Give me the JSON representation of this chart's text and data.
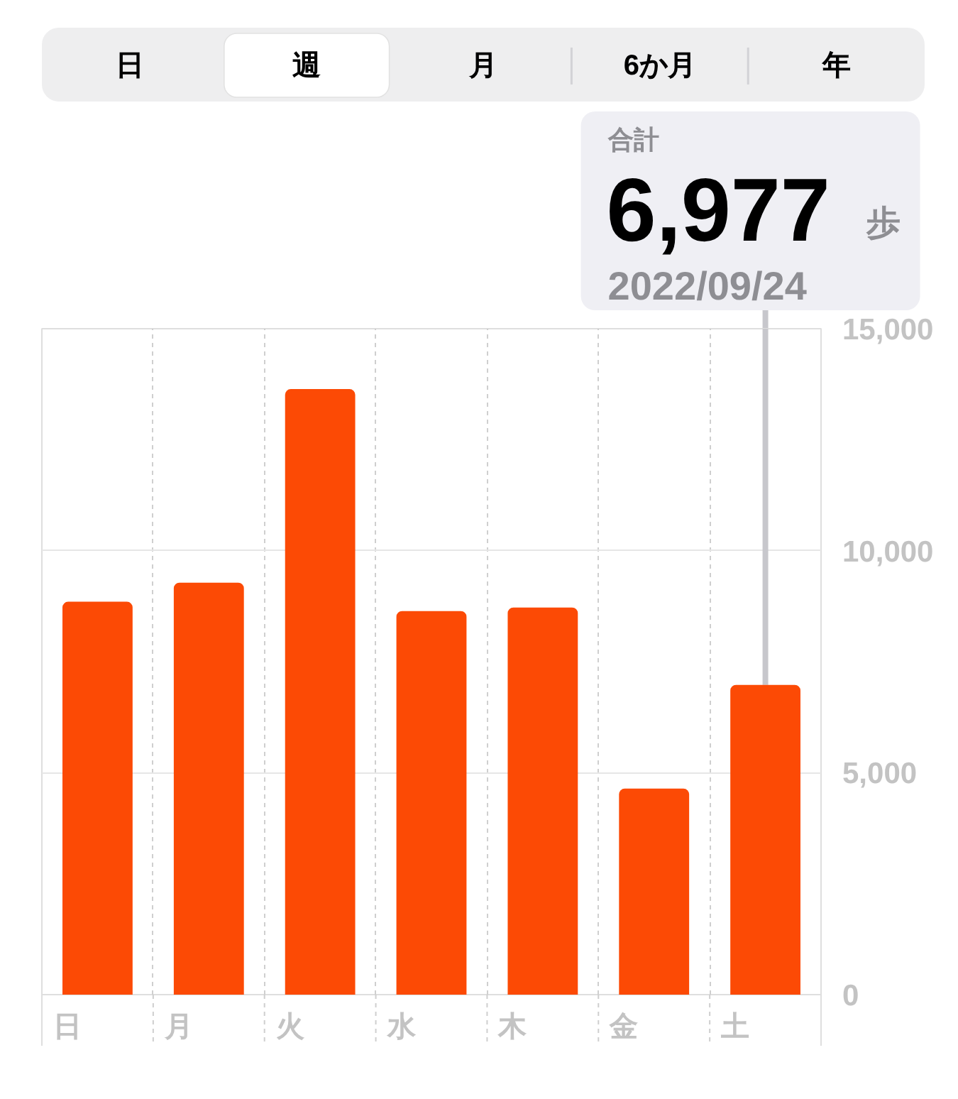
{
  "chart_data": {
    "type": "bar",
    "categories": [
      "日",
      "月",
      "火",
      "水",
      "木",
      "金",
      "土"
    ],
    "values": [
      8850,
      9280,
      13640,
      8640,
      8720,
      4640,
      6977
    ],
    "value_labels": [
      null,
      null,
      null,
      null,
      null,
      null,
      "6,977"
    ],
    "color": "#fc4a05",
    "ylim": [
      0,
      15000
    ],
    "yticks": [
      0,
      {
        "value": 5000,
        "label": "5,000"
      },
      {
        "value": 10000,
        "label": "10,000"
      },
      {
        "value": 15000,
        "label": "15,000"
      }
    ],
    "grid": true,
    "annotations": [
      "日",
      "週",
      "月",
      "6か月",
      "年",
      "合計",
      "歩",
      "2022/09/24"
    ]
  }
}
